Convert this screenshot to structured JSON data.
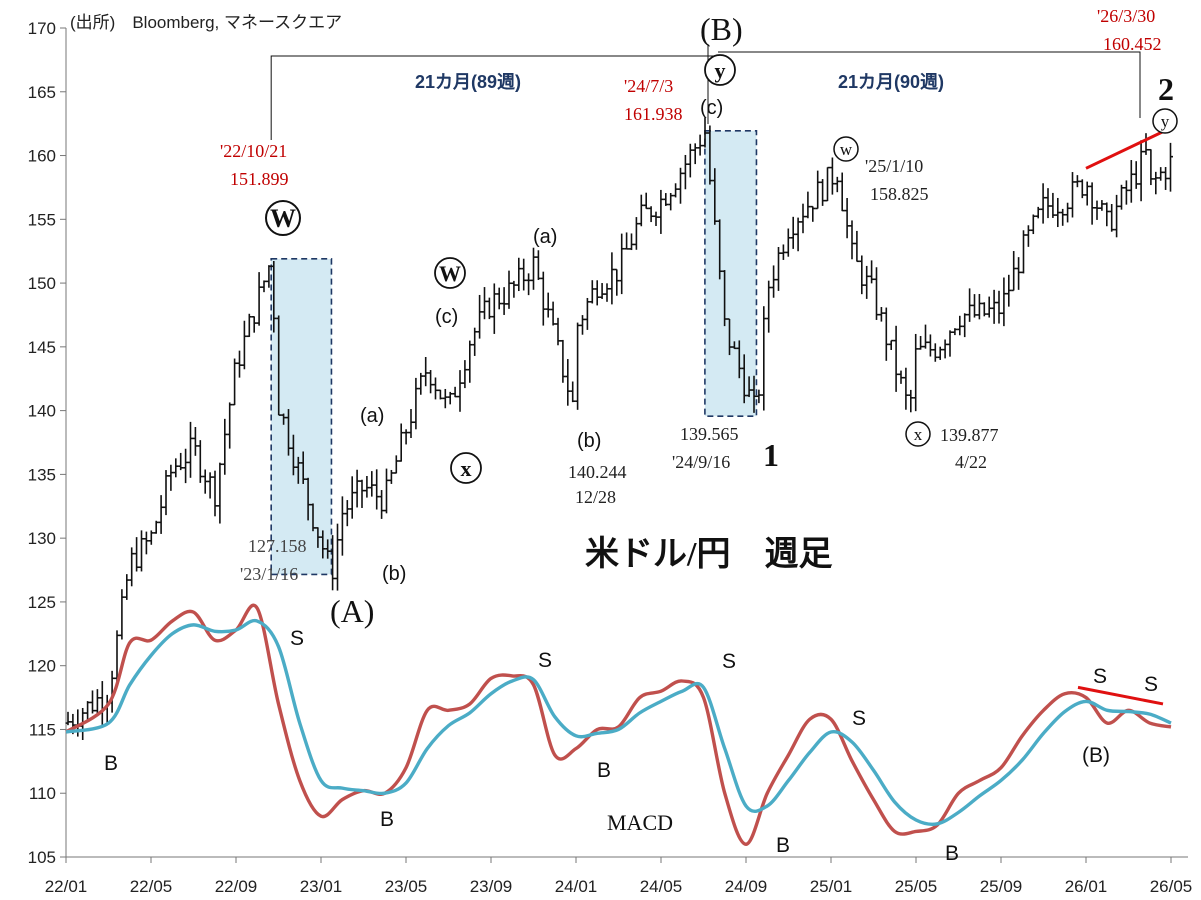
{
  "chart_data": {
    "type": "line",
    "title": "米ドル/円　週足",
    "source": "(出所)　Bloomberg, マネースクエア",
    "ylim": [
      105,
      170
    ],
    "yticks": [
      105,
      110,
      115,
      120,
      125,
      130,
      135,
      140,
      145,
      150,
      155,
      160,
      165,
      170
    ],
    "x_ticks": [
      "22/01",
      "22/05",
      "22/09",
      "23/01",
      "23/05",
      "23/09",
      "24/01",
      "24/05",
      "24/09",
      "25/01",
      "25/05",
      "25/09",
      "26/01",
      "26/05"
    ],
    "grid": false,
    "legend": "none",
    "macd_label": "MACD",
    "price_series": [
      {
        "x": "2022-01",
        "y": 115.5
      },
      {
        "x": "2022-03",
        "y": 118.0
      },
      {
        "x": "2022-04",
        "y": 128.0
      },
      {
        "x": "2022-05",
        "y": 130.0
      },
      {
        "x": "2022-06",
        "y": 135.5
      },
      {
        "x": "2022-07",
        "y": 137.0
      },
      {
        "x": "2022-08",
        "y": 133.5
      },
      {
        "x": "2022-09",
        "y": 143.5
      },
      {
        "x": "2022-10",
        "y": 148.5
      },
      {
        "x": "2022-10-21",
        "y": 151.899
      },
      {
        "x": "2022-11",
        "y": 140.5
      },
      {
        "x": "2022-12",
        "y": 135.0
      },
      {
        "x": "2023-01-16",
        "y": 127.158
      },
      {
        "x": "2023-02",
        "y": 132.0
      },
      {
        "x": "2023-03",
        "y": 134.0
      },
      {
        "x": "2023-04",
        "y": 133.0
      },
      {
        "x": "2023-05",
        "y": 138.5
      },
      {
        "x": "2023-06",
        "y": 143.5
      },
      {
        "x": "2023-07",
        "y": 140.0
      },
      {
        "x": "2023-08",
        "y": 145.5
      },
      {
        "x": "2023-09",
        "y": 148.5
      },
      {
        "x": "2023-10",
        "y": 149.5
      },
      {
        "x": "2023-11",
        "y": 151.5
      },
      {
        "x": "2023-12-28",
        "y": 140.244
      },
      {
        "x": "2024-01",
        "y": 146.5
      },
      {
        "x": "2024-02",
        "y": 150.0
      },
      {
        "x": "2024-03",
        "y": 151.0
      },
      {
        "x": "2024-04",
        "y": 155.0
      },
      {
        "x": "2024-05",
        "y": 156.5
      },
      {
        "x": "2024-06",
        "y": 159.0
      },
      {
        "x": "2024-07-03",
        "y": 161.938
      },
      {
        "x": "2024-08",
        "y": 146.5
      },
      {
        "x": "2024-09-16",
        "y": 139.565
      },
      {
        "x": "2024-10",
        "y": 149.5
      },
      {
        "x": "2024-11",
        "y": 154.5
      },
      {
        "x": "2025-01-10",
        "y": 158.825
      },
      {
        "x": "2025-02",
        "y": 152.0
      },
      {
        "x": "2025-03",
        "y": 149.0
      },
      {
        "x": "2025-04-22",
        "y": 139.877
      },
      {
        "x": "2025-05",
        "y": 144.5
      },
      {
        "x": "2025-06",
        "y": 145.0
      },
      {
        "x": "2025-07",
        "y": 147.5
      },
      {
        "x": "2025-08",
        "y": 147.5
      },
      {
        "x": "2025-09",
        "y": 148.0
      },
      {
        "x": "2025-10",
        "y": 152.5
      },
      {
        "x": "2025-11",
        "y": 156.0
      },
      {
        "x": "2025-12",
        "y": 156.5
      },
      {
        "x": "2026-01",
        "y": 158.0
      },
      {
        "x": "2026-02",
        "y": 154.5
      },
      {
        "x": "2026-03-30",
        "y": 160.452
      },
      {
        "x": "2026-04",
        "y": 157.5
      },
      {
        "x": "2026-05",
        "y": 159.5
      }
    ],
    "macd_series": [
      {
        "name": "MACD",
        "color": "#c0504d",
        "points": [
          {
            "x": "2022-01",
            "y": 114.8
          },
          {
            "x": "2022-03",
            "y": 117.0
          },
          {
            "x": "2022-04",
            "y": 121.8
          },
          {
            "x": "2022-05",
            "y": 122.0
          },
          {
            "x": "2022-06",
            "y": 123.5
          },
          {
            "x": "2022-07",
            "y": 124.2
          },
          {
            "x": "2022-08",
            "y": 122.0
          },
          {
            "x": "2022-09",
            "y": 122.8
          },
          {
            "x": "2022-10",
            "y": 124.5
          },
          {
            "x": "2022-11",
            "y": 117.0
          },
          {
            "x": "2022-12",
            "y": 111.0
          },
          {
            "x": "2023-01",
            "y": 108.2
          },
          {
            "x": "2023-02",
            "y": 109.5
          },
          {
            "x": "2023-03",
            "y": 110.2
          },
          {
            "x": "2023-04",
            "y": 110.0
          },
          {
            "x": "2023-05",
            "y": 112.0
          },
          {
            "x": "2023-06",
            "y": 116.5
          },
          {
            "x": "2023-07",
            "y": 116.5
          },
          {
            "x": "2023-08",
            "y": 117.0
          },
          {
            "x": "2023-09",
            "y": 119.0
          },
          {
            "x": "2023-10",
            "y": 119.2
          },
          {
            "x": "2023-11",
            "y": 118.5
          },
          {
            "x": "2023-12",
            "y": 113.0
          },
          {
            "x": "2024-01",
            "y": 113.5
          },
          {
            "x": "2024-02",
            "y": 115.0
          },
          {
            "x": "2024-03",
            "y": 115.2
          },
          {
            "x": "2024-04",
            "y": 117.5
          },
          {
            "x": "2024-05",
            "y": 118.0
          },
          {
            "x": "2024-06",
            "y": 118.8
          },
          {
            "x": "2024-07",
            "y": 117.5
          },
          {
            "x": "2024-08",
            "y": 110.0
          },
          {
            "x": "2024-09",
            "y": 106.0
          },
          {
            "x": "2024-10",
            "y": 110.0
          },
          {
            "x": "2024-11",
            "y": 113.0
          },
          {
            "x": "2024-12",
            "y": 115.8
          },
          {
            "x": "2025-01",
            "y": 115.8
          },
          {
            "x": "2025-02",
            "y": 112.5
          },
          {
            "x": "2025-03",
            "y": 109.5
          },
          {
            "x": "2025-04",
            "y": 107.0
          },
          {
            "x": "2025-05",
            "y": 107.0
          },
          {
            "x": "2025-06",
            "y": 107.5
          },
          {
            "x": "2025-07",
            "y": 110.0
          },
          {
            "x": "2025-08",
            "y": 111.0
          },
          {
            "x": "2025-09",
            "y": 112.0
          },
          {
            "x": "2025-10",
            "y": 114.5
          },
          {
            "x": "2025-11",
            "y": 116.5
          },
          {
            "x": "2025-12",
            "y": 117.8
          },
          {
            "x": "2026-01",
            "y": 117.5
          },
          {
            "x": "2026-02",
            "y": 115.5
          },
          {
            "x": "2026-03",
            "y": 116.5
          },
          {
            "x": "2026-04",
            "y": 115.5
          },
          {
            "x": "2026-05",
            "y": 115.2
          }
        ]
      },
      {
        "name": "Signal",
        "color": "#4bacc6",
        "points": [
          {
            "x": "2022-01",
            "y": 114.8
          },
          {
            "x": "2022-03",
            "y": 115.5
          },
          {
            "x": "2022-04",
            "y": 118.5
          },
          {
            "x": "2022-05",
            "y": 120.8
          },
          {
            "x": "2022-06",
            "y": 122.5
          },
          {
            "x": "2022-07",
            "y": 123.2
          },
          {
            "x": "2022-08",
            "y": 122.7
          },
          {
            "x": "2022-09",
            "y": 122.8
          },
          {
            "x": "2022-10",
            "y": 123.5
          },
          {
            "x": "2022-11",
            "y": 121.5
          },
          {
            "x": "2022-12",
            "y": 115.5
          },
          {
            "x": "2023-01",
            "y": 111.0
          },
          {
            "x": "2023-02",
            "y": 110.4
          },
          {
            "x": "2023-03",
            "y": 110.2
          },
          {
            "x": "2023-04",
            "y": 110.0
          },
          {
            "x": "2023-05",
            "y": 110.8
          },
          {
            "x": "2023-06",
            "y": 113.5
          },
          {
            "x": "2023-07",
            "y": 115.3
          },
          {
            "x": "2023-08",
            "y": 116.3
          },
          {
            "x": "2023-09",
            "y": 117.8
          },
          {
            "x": "2023-10",
            "y": 118.8
          },
          {
            "x": "2023-11",
            "y": 118.9
          },
          {
            "x": "2023-12",
            "y": 116.0
          },
          {
            "x": "2024-01",
            "y": 114.5
          },
          {
            "x": "2024-02",
            "y": 114.7
          },
          {
            "x": "2024-03",
            "y": 115.0
          },
          {
            "x": "2024-04",
            "y": 116.3
          },
          {
            "x": "2024-05",
            "y": 117.2
          },
          {
            "x": "2024-06",
            "y": 118.0
          },
          {
            "x": "2024-07",
            "y": 118.3
          },
          {
            "x": "2024-08",
            "y": 113.5
          },
          {
            "x": "2024-09",
            "y": 109.0
          },
          {
            "x": "2024-10",
            "y": 109.0
          },
          {
            "x": "2024-11",
            "y": 111.0
          },
          {
            "x": "2024-12",
            "y": 113.2
          },
          {
            "x": "2025-01",
            "y": 114.8
          },
          {
            "x": "2025-02",
            "y": 114.0
          },
          {
            "x": "2025-03",
            "y": 111.8
          },
          {
            "x": "2025-04",
            "y": 109.3
          },
          {
            "x": "2025-05",
            "y": 107.9
          },
          {
            "x": "2025-06",
            "y": 107.6
          },
          {
            "x": "2025-07",
            "y": 108.5
          },
          {
            "x": "2025-08",
            "y": 109.8
          },
          {
            "x": "2025-09",
            "y": 111.0
          },
          {
            "x": "2025-10",
            "y": 112.6
          },
          {
            "x": "2025-11",
            "y": 114.7
          },
          {
            "x": "2025-12",
            "y": 116.4
          },
          {
            "x": "2026-01",
            "y": 117.2
          },
          {
            "x": "2026-02",
            "y": 116.5
          },
          {
            "x": "2026-03",
            "y": 116.4
          },
          {
            "x": "2026-04",
            "y": 116.2
          },
          {
            "x": "2026-05",
            "y": 115.5
          }
        ]
      }
    ],
    "boxes": [
      {
        "x0": "2022-10-21",
        "x1": "2023-01-16",
        "y0": 127.158,
        "y1": 151.899
      },
      {
        "x0": "2024-07-03",
        "x1": "2024-09-16",
        "y0": 139.565,
        "y1": 161.938
      }
    ],
    "annotations": {
      "peak_2022": {
        "date": "'22/10/21",
        "value": "151.899"
      },
      "low_2023": {
        "value": "127.158",
        "date": "'23/1/16"
      },
      "peak_2024": {
        "date": "'24/7/3",
        "value": "161.938"
      },
      "low_2024": {
        "value": "139.565",
        "date": "'24/9/16"
      },
      "low_2023_dec": {
        "value": "140.244",
        "date": "12/28"
      },
      "peak_2025": {
        "date": "'25/1/10",
        "value": "158.825"
      },
      "low_2025": {
        "value": "139.877",
        "date": "4/22"
      },
      "peak_2026": {
        "date": "'26/3/30",
        "value": "160.452"
      },
      "span_left": "21カ月(89週)",
      "span_right": "21カ月(90週)",
      "wave_B_big": "(B)",
      "wave_A_big": "(A)",
      "wave_1": "1",
      "wave_2": "2",
      "circ_W": "W",
      "circ_w": "w",
      "circ_x": "x",
      "circ_y": "y",
      "w_a": "(a)",
      "w_b": "(b)",
      "w_c": "(c)",
      "sell": "S",
      "buy": "B",
      "macd_B_paren": "(B)"
    }
  }
}
